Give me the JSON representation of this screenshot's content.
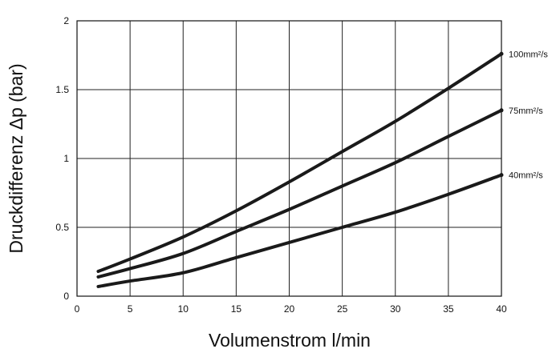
{
  "chart_data": {
    "type": "line",
    "title": "",
    "xlabel": "Volumenstrom l/min",
    "ylabel": "Druckdifferenz Δp (bar)",
    "xlim": [
      0,
      40
    ],
    "ylim": [
      0,
      2
    ],
    "xticks": [
      0,
      5,
      10,
      15,
      20,
      25,
      30,
      35,
      40
    ],
    "yticks": [
      0,
      0.5,
      1,
      1.5,
      2
    ],
    "xtick_labels": [
      "0",
      "5",
      "10",
      "15",
      "20",
      "25",
      "30",
      "35",
      "40"
    ],
    "ytick_labels": [
      "0",
      "0.5",
      "1",
      "1.5",
      "2"
    ],
    "grid": true,
    "legend": "labels at line ends (right)",
    "line_color": "#1a1a1a",
    "series": [
      {
        "name": "100mm²/s",
        "x": [
          2,
          5,
          10,
          15,
          20,
          25,
          30,
          35,
          40
        ],
        "y": [
          0.18,
          0.27,
          0.43,
          0.62,
          0.83,
          1.05,
          1.27,
          1.51,
          1.76
        ]
      },
      {
        "name": "75mm²/s",
        "x": [
          2,
          5,
          10,
          15,
          20,
          25,
          30,
          35,
          40
        ],
        "y": [
          0.14,
          0.2,
          0.31,
          0.47,
          0.63,
          0.8,
          0.97,
          1.16,
          1.35
        ]
      },
      {
        "name": "40mm²/s",
        "x": [
          2,
          5,
          10,
          15,
          20,
          25,
          30,
          35,
          40
        ],
        "y": [
          0.07,
          0.11,
          0.17,
          0.28,
          0.39,
          0.5,
          0.61,
          0.74,
          0.88
        ]
      }
    ]
  }
}
